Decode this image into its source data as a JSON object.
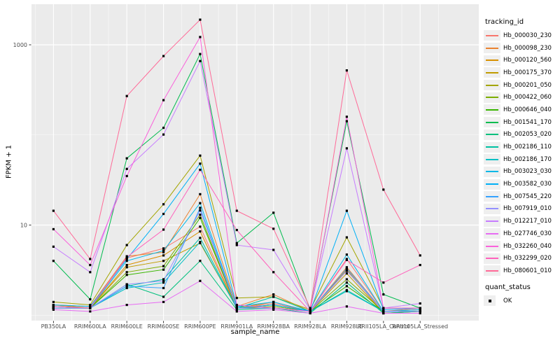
{
  "figure": {
    "bg": "#FFFFFF"
  },
  "panel": {
    "bg": "#EBEBEB",
    "grid_major": "#FFFFFF",
    "grid_minor": "#FFFFFF",
    "tick_color": "#333333",
    "tick_label_color": "#4D4D4D"
  },
  "axes": {
    "x_title": "sample_name",
    "y_title": "FPKM + 1",
    "y_tick_labels": [
      {
        "label": "10",
        "value": 10
      },
      {
        "label": "1000",
        "value": 1000
      }
    ],
    "y_minor_values": [
      1,
      100
    ]
  },
  "legend": {
    "tracking_title": "tracking_id",
    "quant_title": "quant_status",
    "quant_label": "OK",
    "quant_point_color": "#000000",
    "key_bg": "#EFEFEF"
  },
  "chart_data": {
    "type": "line",
    "title": "",
    "xlabel": "sample_name",
    "ylabel": "FPKM + 1",
    "y_scale": "log10",
    "ylim": [
      0.87,
      2845
    ],
    "grid": "on",
    "legend_position": "right",
    "point_color": "#000000",
    "quant_status": "OK",
    "categories": [
      "PB350LA",
      "RRIM600LA",
      "RRIM600LE",
      "RRIM600SE",
      "RRIM600PE",
      "RRIM901LA",
      "RRIM928BA",
      "RRIM928LA",
      "RRIM928LE",
      "RRII105LA_Control",
      "RRII105LA_Stressed"
    ],
    "series": [
      {
        "name": "Hb_000030_230",
        "color": "#F8766D",
        "values": [
          1.25,
          1.2,
          4.3,
          5.5,
          9.6,
          1.2,
          1.35,
          1.1,
          4.2,
          1.1,
          1.2
        ]
      },
      {
        "name": "Hb_000098_230",
        "color": "#EA8331",
        "values": [
          1.3,
          1.25,
          4.5,
          5.0,
          22,
          1.25,
          1.7,
          1.1,
          3.4,
          1.1,
          1.15
        ]
      },
      {
        "name": "Hb_000120_560",
        "color": "#D89000",
        "values": [
          1.3,
          1.2,
          3.6,
          4.6,
          8.5,
          1.2,
          1.4,
          1.1,
          3.2,
          1.05,
          1.1
        ]
      },
      {
        "name": "Hb_000175_370",
        "color": "#C09B00",
        "values": [
          1.25,
          1.2,
          3.4,
          4.0,
          6.3,
          1.2,
          1.3,
          1.1,
          2.9,
          1.05,
          1.1
        ]
      },
      {
        "name": "Hb_000201_050",
        "color": "#A3A500",
        "values": [
          1.4,
          1.3,
          6.0,
          17,
          59,
          1.55,
          1.6,
          1.15,
          7.3,
          1.2,
          1.2
        ]
      },
      {
        "name": "Hb_000422_060",
        "color": "#7CAE00",
        "values": [
          1.2,
          1.2,
          3.0,
          3.5,
          13,
          1.2,
          1.25,
          1.1,
          2.5,
          1.1,
          1.1
        ]
      },
      {
        "name": "Hb_000646_040",
        "color": "#39B600",
        "values": [
          1.2,
          1.2,
          2.8,
          3.2,
          12,
          1.2,
          1.2,
          1.1,
          2.1,
          1.1,
          1.1
        ]
      },
      {
        "name": "Hb_001541_170",
        "color": "#00BB4E",
        "values": [
          4.0,
          1.5,
          55,
          120,
          790,
          6.3,
          13.7,
          1.15,
          142,
          1.7,
          1.2
        ]
      },
      {
        "name": "Hb_002053_020",
        "color": "#00BF7D",
        "values": [
          1.2,
          1.2,
          2.2,
          1.6,
          4.0,
          1.15,
          1.2,
          1.05,
          2.3,
          1.05,
          1.1
        ]
      },
      {
        "name": "Hb_002186_110",
        "color": "#00C1A3",
        "values": [
          1.2,
          1.2,
          2.1,
          2.5,
          7.2,
          1.2,
          1.6,
          1.1,
          1.9,
          1.1,
          1.1
        ]
      },
      {
        "name": "Hb_002186_170",
        "color": "#00BFC4",
        "values": [
          1.2,
          1.2,
          2.0,
          2.3,
          6.5,
          1.2,
          1.3,
          1.1,
          1.85,
          1.1,
          1.1
        ]
      },
      {
        "name": "Hb_003023_030",
        "color": "#00B8E7",
        "values": [
          1.25,
          1.2,
          4.0,
          5.2,
          17.5,
          1.2,
          1.3,
          1.1,
          4.7,
          1.1,
          1.15
        ]
      },
      {
        "name": "Hb_003582_030",
        "color": "#00B0F6",
        "values": [
          1.3,
          1.25,
          4.2,
          13.3,
          48,
          1.25,
          1.4,
          1.1,
          14.4,
          1.15,
          1.2
        ]
      },
      {
        "name": "Hb_007545_220",
        "color": "#35A2FF",
        "values": [
          1.2,
          1.2,
          2.1,
          2.0,
          15.5,
          1.2,
          1.2,
          1.1,
          3.3,
          1.1,
          1.1
        ]
      },
      {
        "name": "Hb_007919_010",
        "color": "#9590FF",
        "values": [
          1.2,
          1.2,
          2.2,
          2.4,
          14.5,
          1.2,
          1.2,
          1.1,
          3.1,
          1.1,
          1.1
        ]
      },
      {
        "name": "Hb_012217_010",
        "color": "#C77CFF",
        "values": [
          5.75,
          3.0,
          42,
          101,
          660,
          6.0,
          5.3,
          1.15,
          71,
          1.2,
          1.35
        ]
      },
      {
        "name": "Hb_027746_030",
        "color": "#E76BF3",
        "values": [
          1.15,
          1.1,
          1.3,
          1.4,
          2.4,
          1.1,
          1.15,
          1.05,
          1.25,
          1.05,
          1.05
        ]
      },
      {
        "name": "Hb_032260_040",
        "color": "#FA62DB",
        "values": [
          9.0,
          3.6,
          35,
          243,
          1220,
          1.3,
          1.2,
          1.1,
          159,
          1.2,
          1.2
        ]
      },
      {
        "name": "Hb_032299_020",
        "color": "#FF62BC",
        "values": [
          1.25,
          1.2,
          4.4,
          8.9,
          41,
          8.8,
          3.0,
          1.1,
          4.1,
          2.3,
          3.6
        ]
      },
      {
        "name": "Hb_080601_010",
        "color": "#FF6A98",
        "values": [
          14.4,
          4.2,
          270,
          750,
          1900,
          14.4,
          9.1,
          1.2,
          520,
          24.7,
          4.6
        ]
      }
    ]
  }
}
